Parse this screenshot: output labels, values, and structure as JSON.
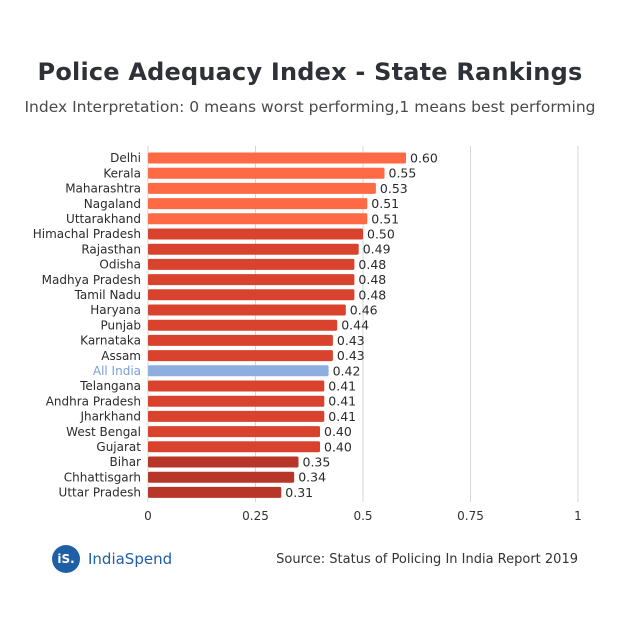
{
  "header": {
    "title": "Police Adequacy Index - State Rankings",
    "subtitle": "Index Interpretation: 0 means worst performing,1 means best performing"
  },
  "footer": {
    "logo_mark": "iS.",
    "logo_text": "IndiaSpend",
    "source": "Source: Status of Policing In India Report 2019"
  },
  "colors": {
    "top": "#ff6a45",
    "mid": "#d9432e",
    "low": "#b8352a",
    "highlight": "#8eaee0",
    "highlight_label": "#7a9fd6",
    "grid": "#d6d6d6"
  },
  "chart_data": {
    "type": "bar",
    "orientation": "horizontal",
    "title": "Police Adequacy Index - State Rankings",
    "subtitle": "Index Interpretation: 0 means worst performing,1 means best performing",
    "xlim": [
      0,
      1
    ],
    "xticks": [
      0,
      0.25,
      0.5,
      0.75,
      1
    ],
    "xtick_labels": [
      "0",
      "0.25",
      "0.5",
      "0.75",
      "1"
    ],
    "grid": true,
    "categories": [
      "Delhi",
      "Kerala",
      "Maharashtra",
      "Nagaland",
      "Uttarakhand",
      "Himachal Pradesh",
      "Rajasthan",
      "Odisha",
      "Madhya Pradesh",
      "Tamil Nadu",
      "Haryana",
      "Punjab",
      "Karnataka",
      "Assam",
      "All India",
      "Telangana",
      "Andhra Pradesh",
      "Jharkhand",
      "West Bengal",
      "Gujarat",
      "Bihar",
      "Chhattisgarh",
      "Uttar Pradesh"
    ],
    "values": [
      0.6,
      0.55,
      0.53,
      0.51,
      0.51,
      0.5,
      0.49,
      0.48,
      0.48,
      0.48,
      0.46,
      0.44,
      0.43,
      0.43,
      0.42,
      0.41,
      0.41,
      0.41,
      0.4,
      0.4,
      0.35,
      0.34,
      0.31
    ],
    "value_labels": [
      "0.60",
      "0.55",
      "0.53",
      "0.51",
      "0.51",
      "0.50",
      "0.49",
      "0.48",
      "0.48",
      "0.48",
      "0.46",
      "0.44",
      "0.43",
      "0.43",
      "0.42",
      "0.41",
      "0.41",
      "0.41",
      "0.40",
      "0.40",
      "0.35",
      "0.34",
      "0.31"
    ],
    "bar_color_groups": [
      "top",
      "top",
      "top",
      "top",
      "top",
      "mid",
      "mid",
      "mid",
      "mid",
      "mid",
      "mid",
      "mid",
      "mid",
      "mid",
      "highlight",
      "mid",
      "mid",
      "mid",
      "mid",
      "mid",
      "low",
      "low",
      "low"
    ],
    "highlight_category": "All India"
  }
}
